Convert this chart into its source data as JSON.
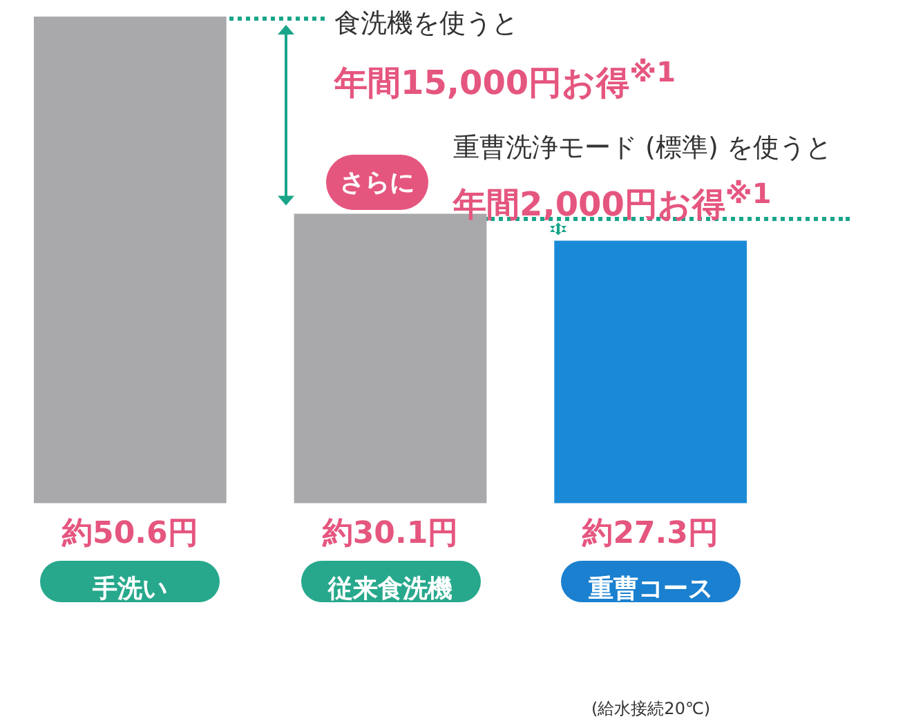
{
  "chart_data": {
    "type": "bar",
    "categories": [
      "手洗い",
      "従来食洗機",
      "重曹コース"
    ],
    "values": [
      50.6,
      30.1,
      27.3
    ],
    "colors": [
      "#a9a9ab",
      "#a9a9ab",
      "#1b8ad6"
    ],
    "value_labels": [
      "約50.6円",
      "約30.1円",
      "約27.3円"
    ],
    "tick_labels": "x",
    "grid": false,
    "legend": false,
    "annotations": [
      "食洗機を使うと",
      "年間15,000円お得$^{※1}$",
      "さらに",
      "重曹洗浄モード (標準) を使うと",
      "年間2,000円お得$^{※1}$",
      "(給水接続20℃)"
    ]
  }
}
